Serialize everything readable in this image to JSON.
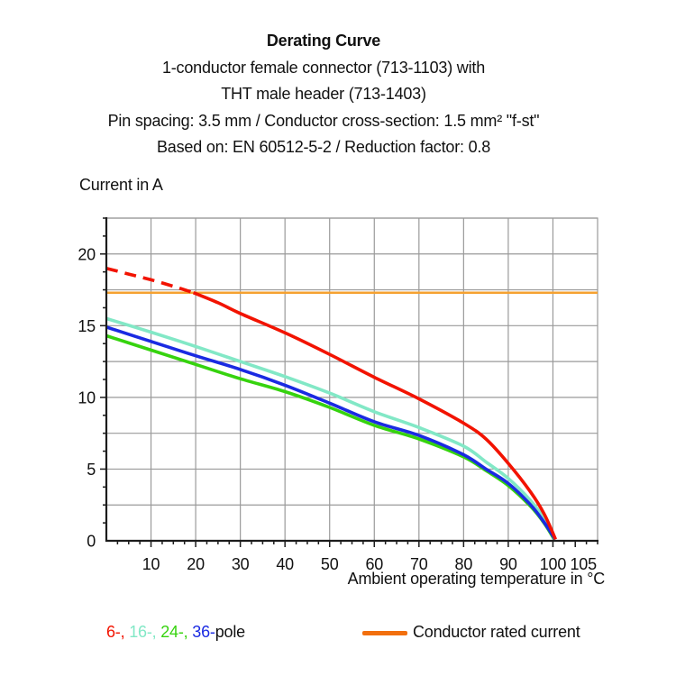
{
  "header": {
    "title": "Derating Curve",
    "line2": "1-conductor female connector (713-1103) with",
    "line3": "THT male header (713-1403)",
    "line4": "Pin spacing: 3.5 mm / Conductor cross-section: 1.5 mm² \"f-st\"",
    "line5": "Based on: EN 60512-5-2 / Reduction factor: 0.8"
  },
  "chart_data": {
    "type": "line",
    "title": "Derating Curve",
    "xlabel": "Ambient operating temperature in °C",
    "ylabel": "Current in A",
    "xlim": [
      0,
      110
    ],
    "ylim": [
      0,
      22.5
    ],
    "grid": {
      "x_step": 10,
      "x_last_line": 100,
      "y_step": 2.5,
      "color": "#9a9a9a"
    },
    "axis_color": "#1c1c1c",
    "x_ticks": [
      {
        "value": 10,
        "label": "10"
      },
      {
        "value": 20,
        "label": "20"
      },
      {
        "value": 30,
        "label": "30"
      },
      {
        "value": 40,
        "label": "40"
      },
      {
        "value": 50,
        "label": "50"
      },
      {
        "value": 60,
        "label": "60"
      },
      {
        "value": 70,
        "label": "70"
      },
      {
        "value": 80,
        "label": "80"
      },
      {
        "value": 90,
        "label": "90"
      },
      {
        "value": 100,
        "label": "100"
      },
      {
        "value": 105,
        "label": "105",
        "dx": 9
      }
    ],
    "y_ticks": [
      {
        "value": 0,
        "label": "0"
      },
      {
        "value": 5,
        "label": "5"
      },
      {
        "value": 10,
        "label": "10"
      },
      {
        "value": 15,
        "label": "15"
      },
      {
        "value": 20,
        "label": "20"
      }
    ],
    "x_minor_step": 2.5,
    "y_minor_step": 1.25,
    "reference_line": {
      "name": "Conductor rated current",
      "y": 17.3,
      "color": "#f5a130",
      "width": 2.4
    },
    "series": [
      {
        "name": "24-pole",
        "color": "#36d30e",
        "width": 3.6,
        "points": [
          [
            0,
            14.3
          ],
          [
            10,
            13.3
          ],
          [
            20,
            12.3
          ],
          [
            30,
            11.3
          ],
          [
            40,
            10.4
          ],
          [
            50,
            9.3
          ],
          [
            60,
            8.05
          ],
          [
            70,
            7.1
          ],
          [
            80,
            5.85
          ],
          [
            85,
            4.9
          ],
          [
            90,
            3.85
          ],
          [
            95,
            2.4
          ],
          [
            98,
            1.25
          ],
          [
            100.3,
            0.1
          ]
        ]
      },
      {
        "name": "16-pole",
        "color": "#82e8c6",
        "width": 3.6,
        "points": [
          [
            0,
            15.5
          ],
          [
            10,
            14.55
          ],
          [
            20,
            13.55
          ],
          [
            30,
            12.5
          ],
          [
            40,
            11.45
          ],
          [
            50,
            10.3
          ],
          [
            60,
            9.0
          ],
          [
            70,
            7.9
          ],
          [
            80,
            6.6
          ],
          [
            85,
            5.5
          ],
          [
            90,
            4.35
          ],
          [
            95,
            2.8
          ],
          [
            98,
            1.55
          ],
          [
            100.4,
            0.1
          ]
        ]
      },
      {
        "name": "36-pole",
        "color": "#1a2ae2",
        "width": 3.6,
        "points": [
          [
            0,
            14.9
          ],
          [
            10,
            13.9
          ],
          [
            20,
            12.9
          ],
          [
            30,
            11.95
          ],
          [
            40,
            10.85
          ],
          [
            50,
            9.6
          ],
          [
            60,
            8.3
          ],
          [
            70,
            7.35
          ],
          [
            80,
            6.0
          ],
          [
            85,
            5.0
          ],
          [
            90,
            4.0
          ],
          [
            95,
            2.5
          ],
          [
            98,
            1.3
          ],
          [
            100.5,
            0.1
          ]
        ]
      },
      {
        "name": "6-pole",
        "color": "#f21300",
        "width": 3.6,
        "dash": "13 8",
        "points": [
          [
            0,
            19.0
          ],
          [
            5,
            18.6
          ],
          [
            10,
            18.2
          ],
          [
            15,
            17.75
          ],
          [
            19.5,
            17.3
          ]
        ]
      },
      {
        "name": "6-pole",
        "color": "#f21300",
        "width": 3.6,
        "points": [
          [
            19.5,
            17.3
          ],
          [
            25,
            16.6
          ],
          [
            30,
            15.85
          ],
          [
            40,
            14.5
          ],
          [
            50,
            13.0
          ],
          [
            60,
            11.4
          ],
          [
            70,
            9.9
          ],
          [
            80,
            8.2
          ],
          [
            85,
            7.1
          ],
          [
            90,
            5.4
          ],
          [
            95,
            3.4
          ],
          [
            98,
            1.9
          ],
          [
            100.6,
            0.1
          ]
        ]
      }
    ]
  },
  "legend": {
    "poles": [
      {
        "label": "6-, ",
        "color": "#f21300"
      },
      {
        "label": "16-, ",
        "color": "#82e8c6"
      },
      {
        "label": "24-, ",
        "color": "#36d30e"
      },
      {
        "label": "36-",
        "color": "#1a2ae2"
      },
      {
        "label": "pole",
        "color": "#111111"
      }
    ],
    "rated": {
      "label": "Conductor rated current",
      "swatch_color": "#f26f0e"
    }
  }
}
